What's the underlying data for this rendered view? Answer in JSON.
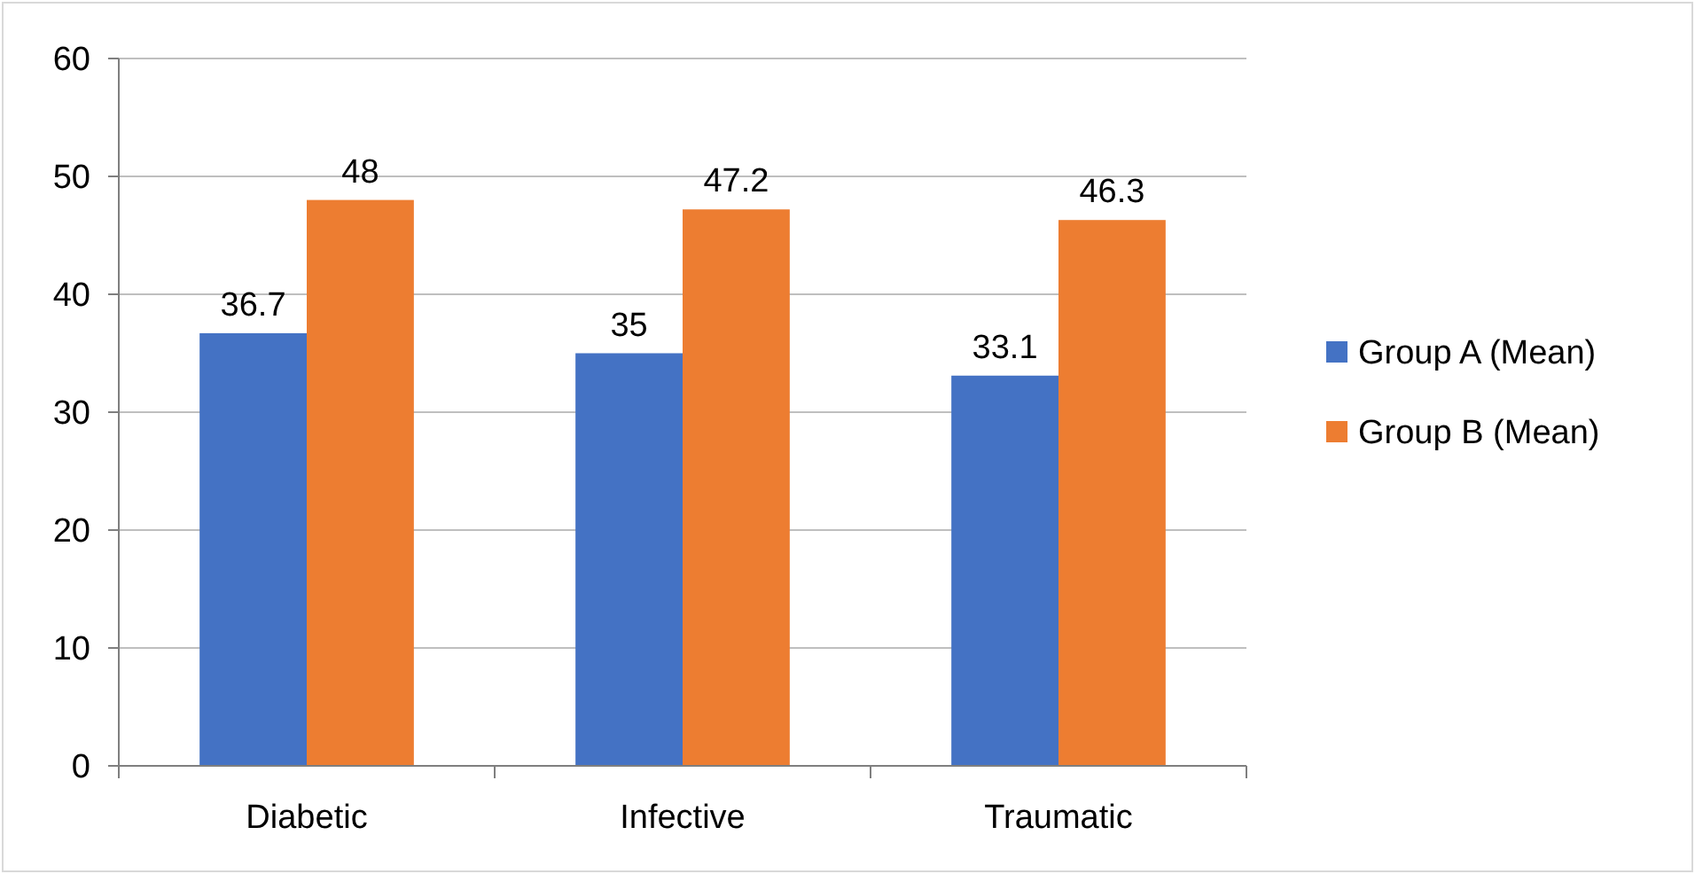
{
  "chart_data": {
    "type": "bar",
    "categories": [
      "Diabetic",
      "Infective",
      "Traumatic"
    ],
    "series": [
      {
        "name": "Group A (Mean)",
        "color": "#4472c4",
        "values": [
          36.7,
          35,
          33.1
        ]
      },
      {
        "name": "Group B (Mean)",
        "color": "#ed7d31",
        "values": [
          48,
          47.2,
          46.3
        ]
      }
    ],
    "ylim": [
      0,
      60
    ],
    "yticks": [
      0,
      10,
      20,
      30,
      40,
      50,
      60
    ],
    "grid": "y",
    "legend": "right",
    "data_labels": true
  }
}
